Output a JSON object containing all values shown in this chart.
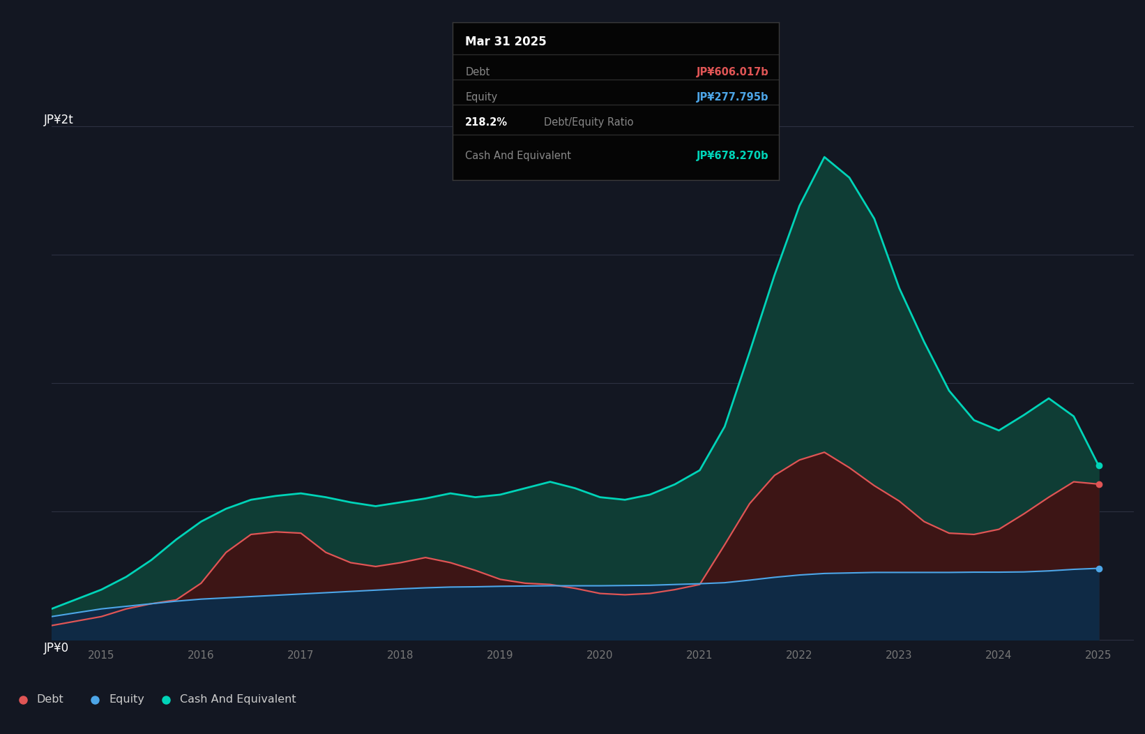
{
  "bg_color": "#131722",
  "grid_color": "#2d3142",
  "debt_color": "#e05555",
  "equity_color": "#4da6e8",
  "cash_color": "#00d4b8",
  "debt_fill": "#3d1515",
  "equity_fill": "#0f2a45",
  "cash_fill": "#0f3d35",
  "tooltip_bg": "#050505",
  "tooltip_border": "#3a3a3a",
  "tooltip_title": "Mar 31 2025",
  "tooltip_debt_label": "Debt",
  "tooltip_debt_value": "JP¥606.017b",
  "tooltip_equity_label": "Equity",
  "tooltip_equity_value": "JP¥277.795b",
  "tooltip_ratio": "218.2%",
  "tooltip_ratio_text": "Debt/Equity Ratio",
  "tooltip_cash_label": "Cash And Equivalent",
  "tooltip_cash_value": "JP¥678.270b",
  "legend_items": [
    "Debt",
    "Equity",
    "Cash And Equivalent"
  ],
  "y_label_top": "JP¥2t",
  "y_label_bottom": "JP¥0",
  "x_ticks": [
    2015,
    2016,
    2017,
    2018,
    2019,
    2020,
    2021,
    2022,
    2023,
    2024,
    2025
  ],
  "ymax": 2000,
  "dates": [
    2014.5,
    2015.0,
    2015.25,
    2015.5,
    2015.75,
    2016.0,
    2016.25,
    2016.5,
    2016.75,
    2017.0,
    2017.25,
    2017.5,
    2017.75,
    2018.0,
    2018.25,
    2018.5,
    2018.75,
    2019.0,
    2019.25,
    2019.5,
    2019.75,
    2020.0,
    2020.25,
    2020.5,
    2020.75,
    2021.0,
    2021.25,
    2021.5,
    2021.75,
    2022.0,
    2022.25,
    2022.5,
    2022.75,
    2023.0,
    2023.25,
    2023.5,
    2023.75,
    2024.0,
    2024.25,
    2024.5,
    2024.75,
    2025.0
  ],
  "debt": [
    55,
    90,
    120,
    140,
    155,
    220,
    340,
    410,
    420,
    415,
    340,
    300,
    285,
    300,
    320,
    300,
    270,
    235,
    220,
    215,
    200,
    180,
    175,
    180,
    195,
    215,
    370,
    530,
    640,
    700,
    730,
    670,
    600,
    540,
    460,
    415,
    410,
    430,
    490,
    555,
    615,
    606
  ],
  "equity": [
    90,
    120,
    130,
    140,
    150,
    158,
    163,
    168,
    173,
    178,
    183,
    188,
    193,
    198,
    202,
    205,
    206,
    208,
    209,
    210,
    210,
    210,
    211,
    212,
    215,
    218,
    222,
    232,
    243,
    252,
    258,
    260,
    262,
    262,
    262,
    262,
    263,
    263,
    264,
    268,
    274,
    278
  ],
  "cash": [
    120,
    195,
    245,
    310,
    390,
    460,
    510,
    545,
    560,
    570,
    555,
    535,
    520,
    535,
    550,
    570,
    555,
    565,
    590,
    615,
    590,
    555,
    545,
    565,
    605,
    660,
    830,
    1120,
    1420,
    1690,
    1880,
    1800,
    1640,
    1370,
    1160,
    970,
    855,
    815,
    875,
    940,
    870,
    678
  ]
}
